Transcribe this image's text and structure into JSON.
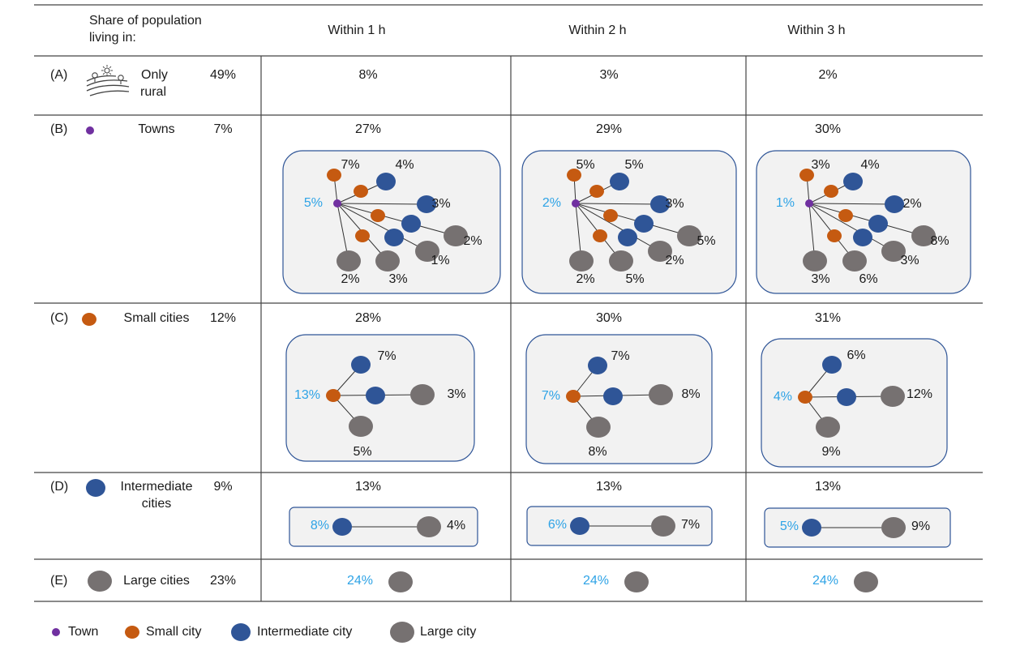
{
  "header": {
    "share_label": [
      "Share of population",
      "living in:"
    ],
    "columns": [
      "Within 1 h",
      "Within 2 h",
      "Within 3 h"
    ]
  },
  "colors": {
    "town": "#7030a0",
    "small_city": "#c55a11",
    "intermediate_city": "#2f5597",
    "large_city": "#767171",
    "self_value": "#2ea3e6",
    "box_fill": "#f2f2f2",
    "box_stroke": "#2f5597"
  },
  "rows": [
    {
      "letter": "(A)",
      "type": "rural",
      "icon": "rural-landscape-icon",
      "name": [
        "Only",
        "rural"
      ],
      "share": "49%",
      "totals": [
        "8%",
        "3%",
        "2%"
      ]
    },
    {
      "letter": "(B)",
      "type": "town",
      "name": [
        "Towns"
      ],
      "share": "7%",
      "totals": [
        "27%",
        "29%",
        "30%"
      ],
      "networks": [
        {
          "self": "5%",
          "labels": [
            "7%",
            "4%",
            "3%",
            "2%",
            "1%",
            "3%",
            "2%"
          ]
        },
        {
          "self": "2%",
          "labels": [
            "5%",
            "5%",
            "3%",
            "5%",
            "2%",
            "5%",
            "2%"
          ]
        },
        {
          "self": "1%",
          "labels": [
            "3%",
            "4%",
            "2%",
            "8%",
            "3%",
            "6%",
            "3%"
          ]
        }
      ]
    },
    {
      "letter": "(C)",
      "type": "small",
      "name": [
        "Small cities"
      ],
      "share": "12%",
      "totals": [
        "28%",
        "30%",
        "31%"
      ],
      "networks": [
        {
          "self": "13%",
          "labels": [
            "7%",
            "3%",
            "5%"
          ]
        },
        {
          "self": "7%",
          "labels": [
            "7%",
            "8%",
            "8%"
          ]
        },
        {
          "self": "4%",
          "labels": [
            "6%",
            "12%",
            "9%"
          ]
        }
      ]
    },
    {
      "letter": "(D)",
      "type": "intermediate",
      "name": [
        "Intermediate",
        "cities"
      ],
      "share": "9%",
      "totals": [
        "13%",
        "13%",
        "13%"
      ],
      "networks": [
        {
          "self": "8%",
          "label": "4%"
        },
        {
          "self": "6%",
          "label": "7%"
        },
        {
          "self": "5%",
          "label": "9%"
        }
      ]
    },
    {
      "letter": "(E)",
      "type": "large",
      "name": [
        "Large cities"
      ],
      "share": "23%",
      "self_values": [
        "24%",
        "24%",
        "24%"
      ]
    }
  ],
  "legend": [
    {
      "type": "town",
      "label": "Town"
    },
    {
      "type": "small",
      "label": "Small city"
    },
    {
      "type": "intermediate",
      "label": "Intermediate city"
    },
    {
      "type": "large",
      "label": "Large city"
    }
  ]
}
